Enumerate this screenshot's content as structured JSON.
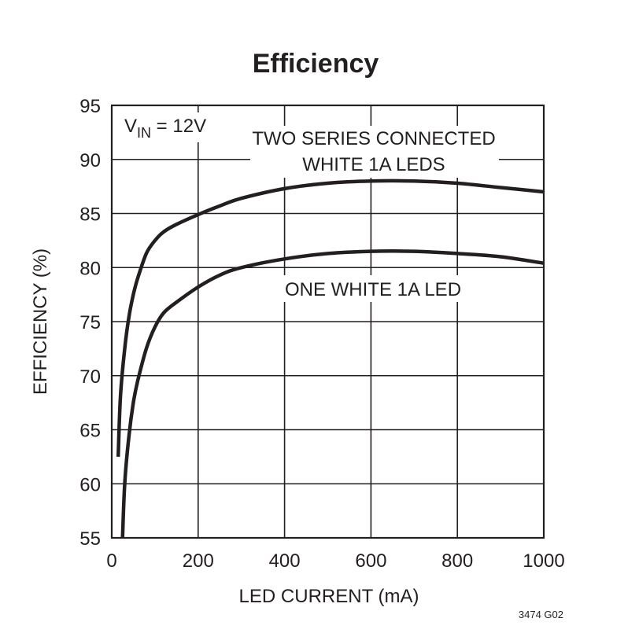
{
  "chart_data": {
    "type": "line",
    "title": "Efficiency",
    "xlabel": "LED CURRENT (mA)",
    "ylabel": "EFFICIENCY (%)",
    "xlim": [
      0,
      1000
    ],
    "ylim": [
      55,
      95
    ],
    "x_ticks": [
      "0",
      "200",
      "400",
      "600",
      "800",
      "1000"
    ],
    "y_ticks": [
      "55",
      "60",
      "65",
      "70",
      "75",
      "80",
      "85",
      "90",
      "95"
    ],
    "grid": true,
    "condition": {
      "v": "V",
      "sub": "IN",
      "rest": " = 12V"
    },
    "figure_code": "3474 G02",
    "series": [
      {
        "label_lines": [
          "TWO SERIES CONNECTED",
          "WHITE 1A LEDS"
        ],
        "x": [
          15,
          20,
          30,
          40,
          50,
          60,
          80,
          100,
          120,
          150,
          200,
          250,
          300,
          400,
          500,
          600,
          700,
          800,
          900,
          1000
        ],
        "y": [
          62.5,
          68.0,
          72.5,
          75.5,
          77.5,
          79.0,
          81.3,
          82.5,
          83.3,
          84.0,
          84.9,
          85.7,
          86.4,
          87.3,
          87.8,
          88.0,
          88.0,
          87.8,
          87.4,
          87.0
        ]
      },
      {
        "label_lines": [
          "ONE WHITE 1A LED"
        ],
        "x": [
          25,
          30,
          40,
          50,
          60,
          80,
          100,
          120,
          150,
          200,
          250,
          300,
          400,
          500,
          600,
          700,
          800,
          900,
          1000
        ],
        "y": [
          55.0,
          60.0,
          64.5,
          67.5,
          69.5,
          72.5,
          74.5,
          75.8,
          76.8,
          78.2,
          79.3,
          80.0,
          80.8,
          81.3,
          81.5,
          81.5,
          81.3,
          81.0,
          80.4
        ]
      }
    ]
  }
}
